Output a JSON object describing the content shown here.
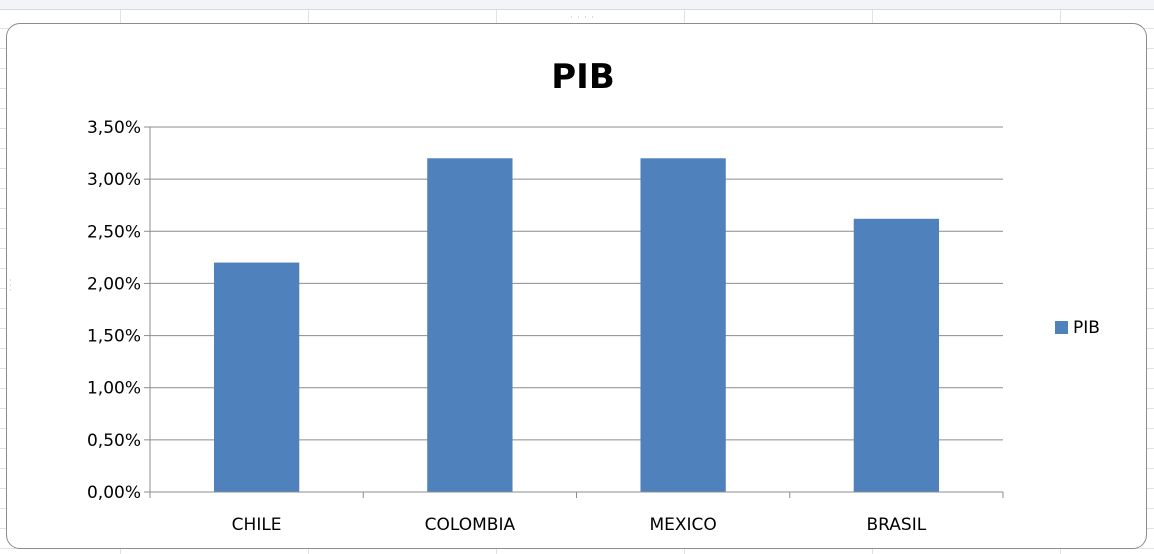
{
  "chart_data": {
    "type": "bar",
    "title": "PIB",
    "xlabel": "",
    "ylabel": "",
    "categories": [
      "CHILE",
      "COLOMBIA",
      "MEXICO",
      "BRASIL"
    ],
    "series": [
      {
        "name": "PIB",
        "values": [
          0.022,
          0.032,
          0.032,
          0.0262
        ],
        "color": "#4f81bd"
      }
    ],
    "ylim": [
      0,
      0.035
    ],
    "yticks": [
      0,
      0.005,
      0.01,
      0.015,
      0.02,
      0.025,
      0.03,
      0.035
    ],
    "ytick_labels": [
      "0,00%",
      "0,50%",
      "1,00%",
      "1,50%",
      "2,00%",
      "2,50%",
      "3,00%",
      "3,50%"
    ],
    "grid": true,
    "legend_position": "right"
  },
  "colors": {
    "bar": "#4f81bd",
    "gridline": "#8c8c8c",
    "axis": "#8c8c8c"
  }
}
